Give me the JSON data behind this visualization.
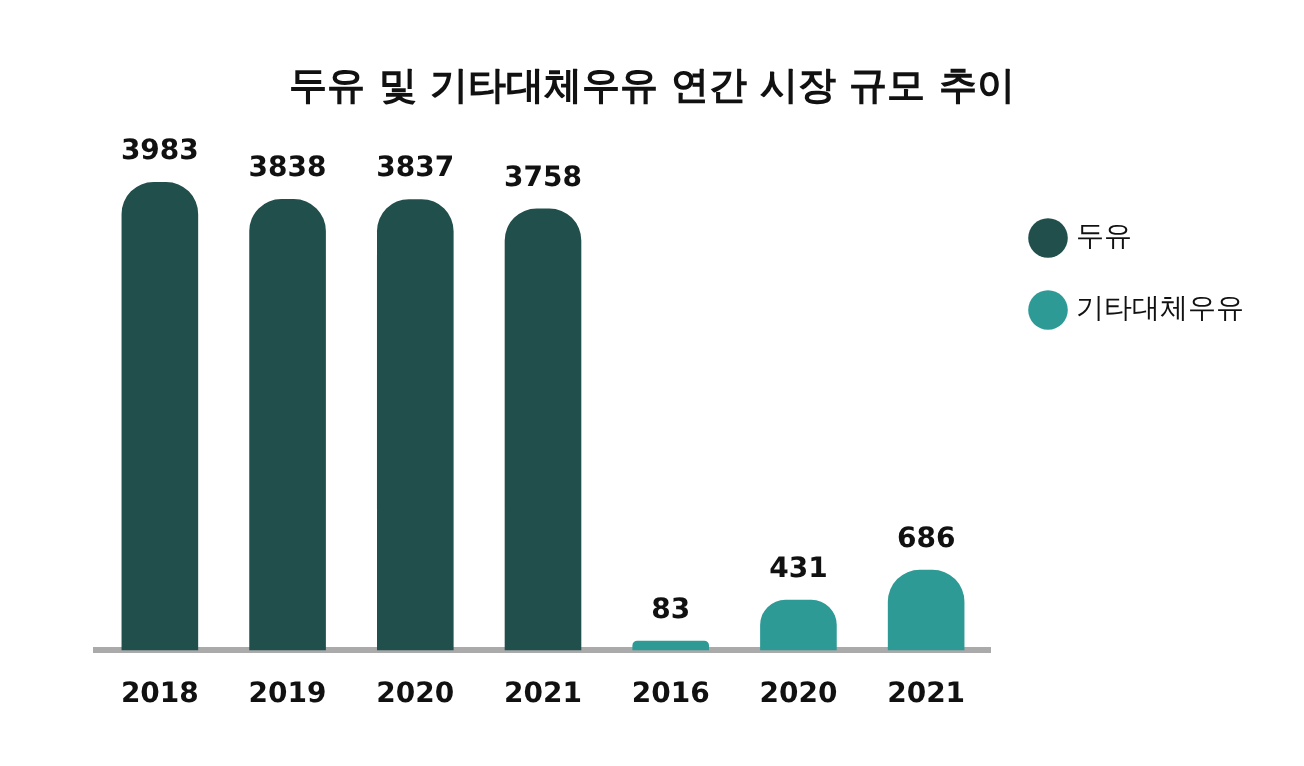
{
  "chart_data": {
    "type": "bar",
    "title": "두유 및 기타대체우유 연간 시장 규모 추이",
    "categories": [
      "2018",
      "2019",
      "2020",
      "2021",
      "2016",
      "2020",
      "2021"
    ],
    "series": [
      {
        "name": "두유",
        "color": "#21504c",
        "values": [
          3983,
          3838,
          3837,
          3758,
          null,
          null,
          null
        ]
      },
      {
        "name": "기타대체우유",
        "color": "#2e9a95",
        "values": [
          null,
          null,
          null,
          null,
          83,
          431,
          686
        ]
      }
    ],
    "data_labels": true,
    "legend": "top right",
    "grid": false
  }
}
